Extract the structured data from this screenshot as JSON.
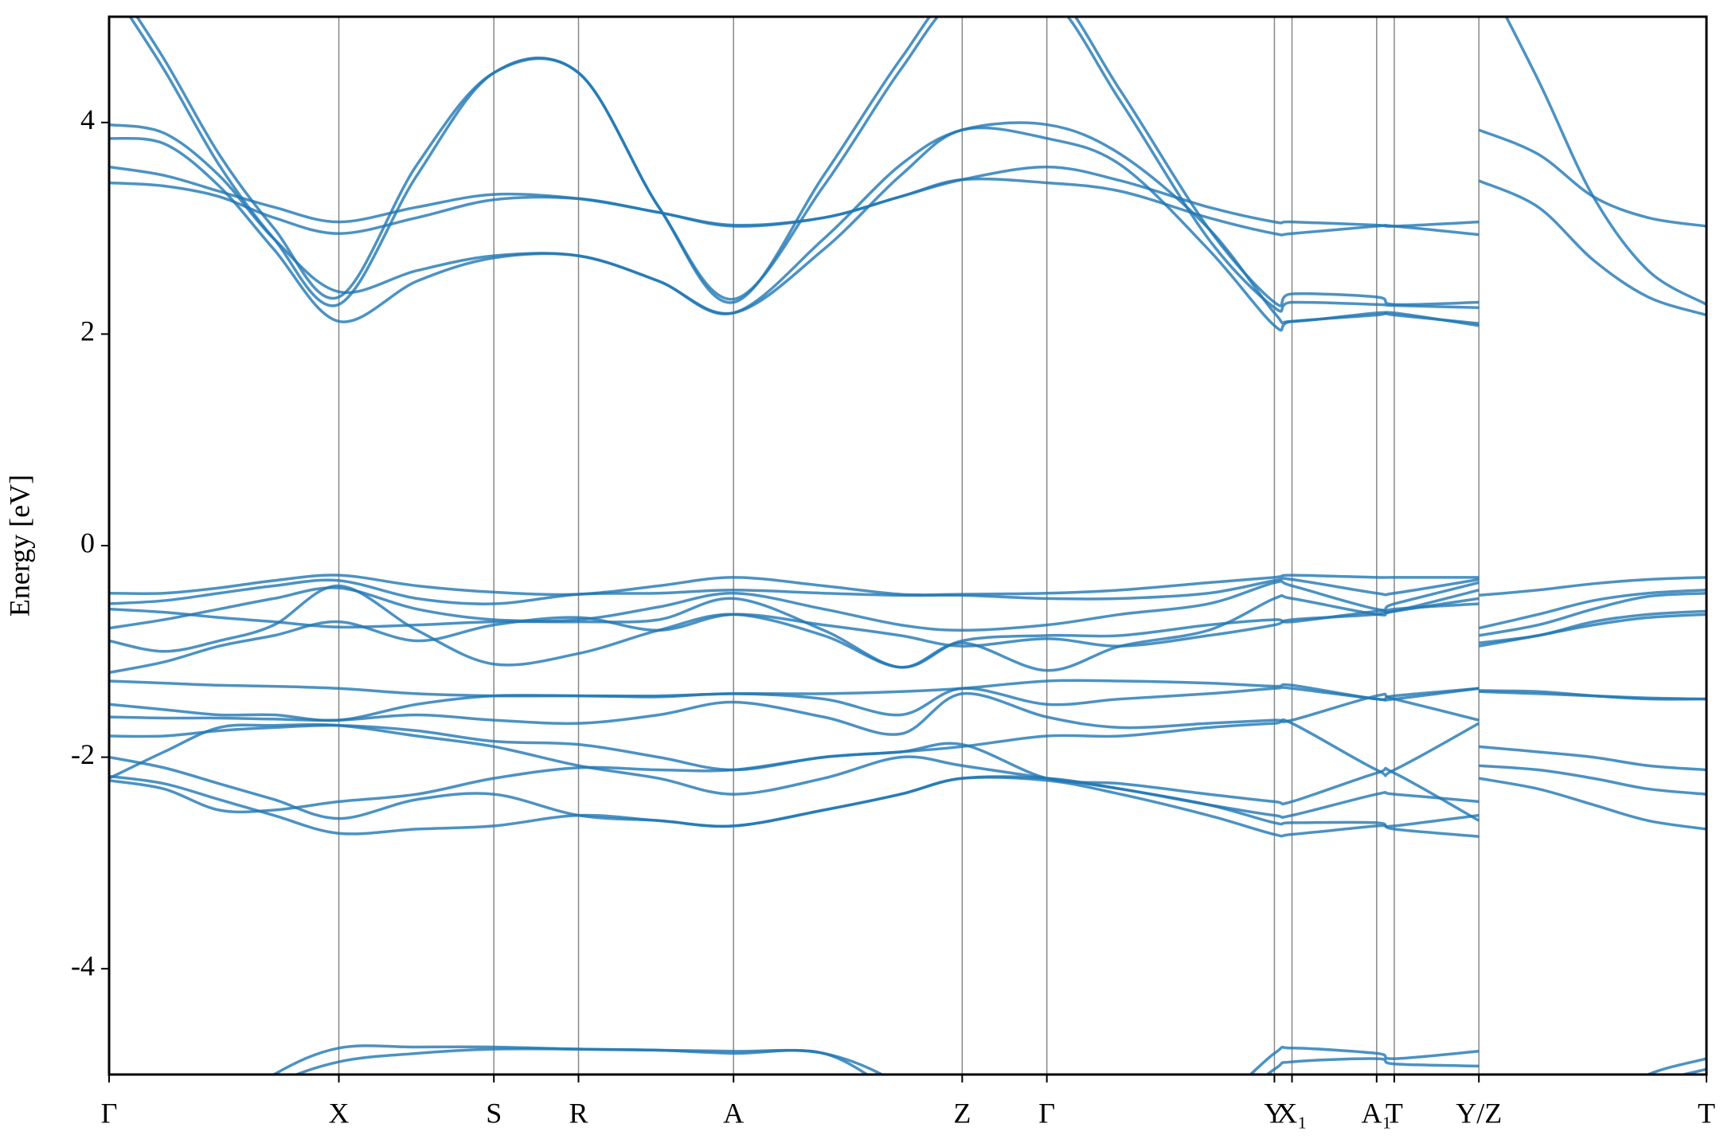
{
  "chart_data": {
    "type": "line",
    "ylabel": "Energy [eV]",
    "color": "#1f77b4",
    "xlim": [
      0,
      1.453
    ],
    "ylim": [
      -5,
      5
    ],
    "yticks": [
      -4,
      -2,
      0,
      2,
      4
    ],
    "xticks": [
      {
        "value": 0,
        "label": "Γ"
      },
      {
        "value": 0.209,
        "label": "X"
      },
      {
        "value": 0.35,
        "label": "S"
      },
      {
        "value": 0.427,
        "label": "R"
      },
      {
        "value": 0.568,
        "label": "A"
      },
      {
        "value": 0.776,
        "label": "Z"
      },
      {
        "value": 0.853,
        "label": "Γ"
      },
      {
        "value": 1.06,
        "label": "Y"
      },
      {
        "value": 1.076,
        "label": "X₁"
      },
      {
        "value": 1.153,
        "label": "A₁"
      },
      {
        "value": 1.169,
        "label": "T"
      },
      {
        "value": 1.246,
        "label": "Y/Z"
      },
      {
        "value": 1.453,
        "label": "T"
      }
    ],
    "x": [
      0,
      0.05,
      0.1,
      0.15,
      0.209,
      0.28,
      0.35,
      0.427,
      0.5,
      0.568,
      0.65,
      0.72,
      0.776,
      0.853,
      0.92,
      1.0,
      1.06,
      1.076,
      1.153,
      1.169,
      1.246,
      1.246,
      1.246,
      1.3,
      1.35,
      1.4,
      1.453
    ],
    "series": [
      {
        "values": [
          5.4,
          4.6,
          3.7,
          3.0,
          2.35,
          3.6,
          4.47,
          4.47,
          3.2,
          2.3,
          3.5,
          4.6,
          5.3,
          5.3,
          4.3,
          3.0,
          2.3,
          2.38,
          2.35,
          2.28,
          2.3,
          null,
          5.5,
          4.4,
          3.3,
          2.6,
          2.28
        ]
      },
      {
        "values": [
          5.3,
          4.5,
          3.6,
          2.9,
          2.28,
          3.5,
          4.47,
          4.47,
          3.2,
          2.33,
          3.4,
          4.5,
          5.2,
          5.2,
          4.2,
          2.9,
          2.25,
          2.3,
          2.28,
          2.27,
          2.25,
          null,
          3.93,
          3.7,
          3.3,
          3.1,
          3.02
        ]
      },
      {
        "values": [
          3.98,
          3.9,
          3.5,
          2.9,
          2.4,
          2.6,
          2.74,
          2.74,
          2.5,
          2.2,
          2.9,
          3.6,
          3.93,
          3.98,
          3.7,
          3.0,
          2.2,
          2.12,
          2.2,
          2.18,
          2.1,
          null,
          3.45,
          3.2,
          2.7,
          2.35,
          2.18
        ]
      },
      {
        "values": [
          3.85,
          3.8,
          3.4,
          2.8,
          2.12,
          2.5,
          2.72,
          2.74,
          2.5,
          2.2,
          2.8,
          3.5,
          3.93,
          3.85,
          3.6,
          2.8,
          2.08,
          2.12,
          2.18,
          2.2,
          2.08,
          null,
          null,
          null,
          null,
          null,
          null
        ]
      },
      {
        "values": [
          3.58,
          3.5,
          3.35,
          3.2,
          3.06,
          3.2,
          3.32,
          3.28,
          3.15,
          3.02,
          3.1,
          3.3,
          3.46,
          3.58,
          3.45,
          3.2,
          3.06,
          3.06,
          3.03,
          3.02,
          3.06,
          null,
          null,
          null,
          null,
          null,
          null
        ]
      },
      {
        "values": [
          3.43,
          3.4,
          3.3,
          3.1,
          2.95,
          3.1,
          3.27,
          3.28,
          3.15,
          3.03,
          3.1,
          3.3,
          3.46,
          3.43,
          3.35,
          3.1,
          2.95,
          2.95,
          3.02,
          3.02,
          2.94,
          null,
          null,
          null,
          null,
          null,
          null
        ]
      },
      {
        "values": [
          -0.45,
          -0.45,
          -0.4,
          -0.33,
          -0.28,
          -0.38,
          -0.44,
          -0.46,
          -0.38,
          -0.3,
          -0.38,
          -0.46,
          -0.46,
          -0.45,
          -0.42,
          -0.35,
          -0.3,
          -0.28,
          -0.3,
          -0.3,
          -0.3,
          null,
          -0.47,
          -0.42,
          -0.36,
          -0.32,
          -0.3
        ]
      },
      {
        "values": [
          -0.55,
          -0.52,
          -0.45,
          -0.38,
          -0.33,
          -0.5,
          -0.55,
          -0.46,
          -0.45,
          -0.42,
          -0.45,
          -0.47,
          -0.47,
          -0.5,
          -0.5,
          -0.45,
          -0.33,
          -0.32,
          -0.45,
          -0.45,
          -0.32,
          null,
          -0.78,
          -0.65,
          -0.52,
          -0.45,
          -0.42
        ]
      },
      {
        "values": [
          -0.78,
          -0.7,
          -0.6,
          -0.5,
          -0.4,
          -0.6,
          -0.7,
          -0.7,
          -0.58,
          -0.45,
          -0.6,
          -0.75,
          -0.8,
          -0.75,
          -0.65,
          -0.55,
          -0.35,
          -0.38,
          -0.6,
          -0.55,
          -0.35,
          null,
          -0.85,
          -0.75,
          -0.6,
          -0.48,
          -0.45
        ]
      },
      {
        "values": [
          -0.6,
          -0.63,
          -0.68,
          -0.72,
          -0.77,
          -0.75,
          -0.72,
          -0.72,
          -0.7,
          -0.5,
          -0.8,
          -1.15,
          -0.9,
          -0.85,
          -0.85,
          -0.75,
          -0.7,
          -0.72,
          -0.62,
          -0.62,
          -0.42,
          null,
          -0.92,
          -0.85,
          -0.72,
          -0.65,
          -0.62
        ]
      },
      {
        "values": [
          -0.9,
          -1.0,
          -0.9,
          -0.75,
          -0.38,
          -0.8,
          -1.12,
          -1.02,
          -0.8,
          -0.65,
          -0.85,
          -1.15,
          -0.92,
          -1.18,
          -0.95,
          -0.8,
          -0.5,
          -0.5,
          -0.65,
          -0.62,
          -0.5,
          null,
          -0.95,
          -0.85,
          -0.75,
          -0.68,
          -0.65
        ]
      },
      {
        "values": [
          -1.2,
          -1.1,
          -0.95,
          -0.85,
          -0.72,
          -0.9,
          -0.75,
          -0.68,
          -0.8,
          -0.65,
          -0.75,
          -0.85,
          -0.95,
          -0.88,
          -0.95,
          -0.85,
          -0.75,
          -0.7,
          -0.65,
          -0.6,
          -0.55,
          null,
          null,
          null,
          null,
          null,
          null
        ]
      },
      {
        "values": [
          -1.28,
          -1.3,
          -1.32,
          -1.33,
          -1.35,
          -1.4,
          -1.42,
          -1.42,
          -1.42,
          -1.4,
          -1.4,
          -1.38,
          -1.35,
          -1.28,
          -1.28,
          -1.3,
          -1.33,
          -1.32,
          -1.45,
          -1.42,
          -1.35,
          null,
          -1.37,
          -1.38,
          -1.42,
          -1.45,
          -1.45
        ]
      },
      {
        "values": [
          -1.5,
          -1.55,
          -1.6,
          -1.6,
          -1.65,
          -1.5,
          -1.42,
          -1.42,
          -1.43,
          -1.4,
          -1.45,
          -1.6,
          -1.35,
          -1.5,
          -1.45,
          -1.4,
          -1.35,
          -1.35,
          -1.45,
          -1.45,
          -1.35,
          null,
          -1.38,
          -1.4,
          -1.42,
          -1.44,
          -1.45
        ]
      },
      {
        "values": [
          -1.62,
          -1.63,
          -1.63,
          -1.64,
          -1.65,
          -1.6,
          -1.65,
          -1.68,
          -1.6,
          -1.48,
          -1.62,
          -1.78,
          -1.4,
          -1.62,
          -1.72,
          -1.68,
          -1.65,
          -1.65,
          -1.42,
          -1.45,
          -1.65,
          null,
          -1.9,
          -1.95,
          -2.0,
          -2.08,
          -2.12
        ]
      },
      {
        "values": [
          -1.8,
          -1.8,
          -1.75,
          -1.72,
          -1.7,
          -1.75,
          -1.85,
          -1.88,
          -2.0,
          -2.12,
          -2.0,
          -1.95,
          -1.9,
          -1.8,
          -1.8,
          -1.72,
          -1.68,
          -1.68,
          -2.12,
          -2.12,
          -1.68,
          null,
          -2.08,
          -2.12,
          -2.2,
          -2.3,
          -2.35
        ]
      },
      {
        "values": [
          -2.2,
          -1.95,
          -1.72,
          -1.7,
          -1.7,
          -1.8,
          -1.9,
          -2.08,
          -2.2,
          -2.35,
          -2.2,
          -2.0,
          -2.08,
          -2.2,
          -2.3,
          -2.45,
          -2.55,
          -2.55,
          -2.35,
          -2.35,
          -2.42,
          null,
          -2.2,
          -2.3,
          -2.45,
          -2.6,
          -2.68
        ]
      },
      {
        "values": [
          -2.22,
          -2.3,
          -2.5,
          -2.5,
          -2.42,
          -2.35,
          -2.2,
          -2.1,
          -2.12,
          -2.12,
          -2.0,
          -1.95,
          -1.88,
          -2.2,
          -2.25,
          -2.35,
          -2.42,
          -2.42,
          -2.15,
          -2.15,
          -2.6,
          null,
          null,
          null,
          null,
          null,
          null
        ]
      },
      {
        "values": [
          -2.0,
          -2.1,
          -2.25,
          -2.4,
          -2.58,
          -2.4,
          -2.35,
          -2.55,
          -2.6,
          -2.65,
          -2.5,
          -2.35,
          -2.2,
          -2.2,
          -2.3,
          -2.45,
          -2.62,
          -2.62,
          -2.62,
          -2.68,
          -2.75,
          null,
          null,
          null,
          null,
          null,
          null
        ]
      },
      {
        "values": [
          -2.18,
          -2.25,
          -2.4,
          -2.55,
          -2.72,
          -2.68,
          -2.65,
          -2.55,
          -2.6,
          -2.65,
          -2.5,
          -2.35,
          -2.2,
          -2.22,
          -2.35,
          -2.55,
          -2.73,
          -2.73,
          -2.65,
          -2.65,
          -2.55,
          null,
          null,
          null,
          null,
          null,
          null
        ]
      },
      {
        "values": [
          -5.5,
          -5.5,
          -5.4,
          -5.0,
          -4.75,
          -4.74,
          -4.74,
          -4.76,
          -4.77,
          -4.8,
          -4.8,
          -5.2,
          -5.5,
          -5.5,
          -5.5,
          -5.3,
          -4.8,
          -4.75,
          -4.8,
          -4.85,
          -4.78,
          null,
          -5.5,
          -5.5,
          -5.3,
          -5.0,
          -4.85
        ]
      },
      {
        "values": [
          -5.6,
          -5.6,
          -5.5,
          -5.1,
          -4.88,
          -4.8,
          -4.76,
          -4.76,
          -4.77,
          -4.78,
          -4.8,
          -5.1,
          -5.6,
          -5.6,
          -5.6,
          -5.4,
          -4.95,
          -4.88,
          -4.85,
          -4.9,
          -4.92,
          null,
          -5.6,
          -5.6,
          -5.4,
          -5.1,
          -4.95
        ]
      }
    ]
  }
}
